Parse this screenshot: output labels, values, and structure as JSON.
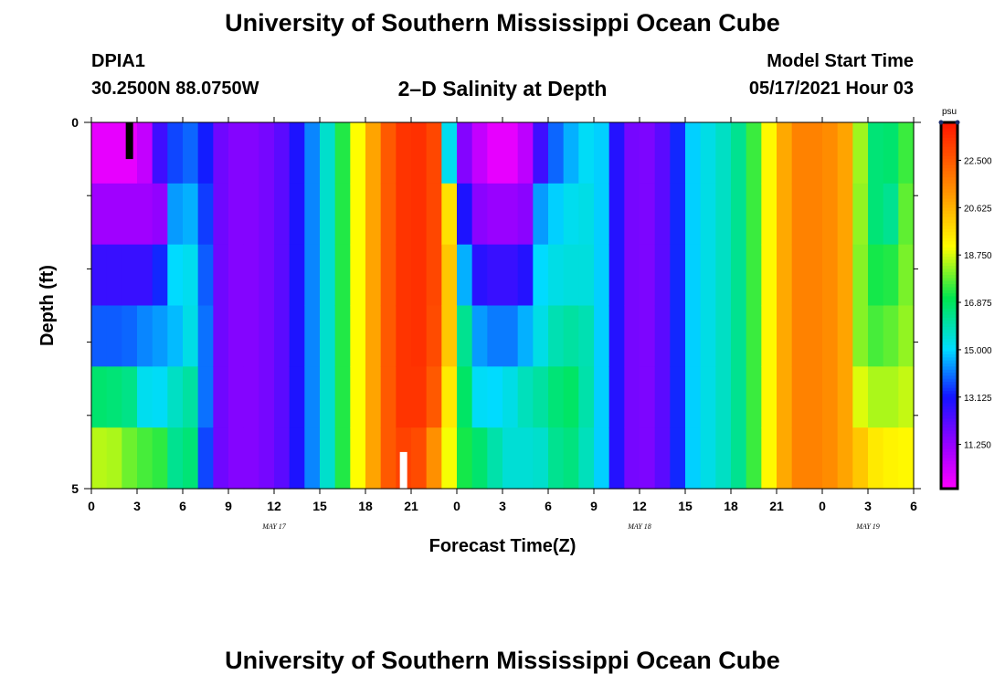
{
  "header": {
    "title": "University of Southern Mississippi Ocean Cube",
    "station_id": "DPIA1",
    "station_coords": "30.2500N  88.0750W",
    "chart_title": "2–D Salinity at Depth",
    "model_start_label": "Model Start Time",
    "model_start_value": "05/17/2021 Hour 03"
  },
  "footer": {
    "title": "University of Southern Mississippi Ocean Cube"
  },
  "chart_data": {
    "type": "heatmap",
    "title": "2–D Salinity at Depth",
    "xlabel": "Forecast Time(Z)",
    "ylabel": "Depth (ft)",
    "x_hours_range": [
      0,
      54
    ],
    "x_tick_hours": [
      0,
      3,
      6,
      9,
      12,
      15,
      18,
      21,
      24,
      27,
      30,
      33,
      36,
      39,
      42,
      45,
      48,
      51,
      54
    ],
    "x_tick_labels": [
      "0",
      "3",
      "6",
      "9",
      "12",
      "15",
      "18",
      "21",
      "0",
      "3",
      "6",
      "9",
      "12",
      "15",
      "18",
      "21",
      "0",
      "3",
      "6"
    ],
    "date_labels": [
      {
        "hour": 12,
        "text": "MAY 17"
      },
      {
        "hour": 36,
        "text": "MAY 18"
      },
      {
        "hour": 51,
        "text": "MAY 19"
      }
    ],
    "y_range": [
      0,
      5
    ],
    "y_tick_labels": [
      "0",
      "5"
    ],
    "y_minor_ticks": [
      1,
      2,
      3,
      4
    ],
    "markers": [
      {
        "hour": 2.5,
        "depth_from": 0,
        "depth_to": 0.5,
        "color": "#000000"
      },
      {
        "hour": 20.5,
        "depth_from": 4.5,
        "depth_to": 5,
        "color": "#ffffff"
      }
    ],
    "colorbar": {
      "unit": "psu",
      "min": 9.5,
      "max": 24.0,
      "tick_values": [
        11.25,
        13.125,
        15.0,
        16.875,
        18.75,
        20.625,
        22.5
      ],
      "tick_labels": [
        "11.250",
        "13.125",
        "15.000",
        "16.875",
        "18.750",
        "20.625",
        "22.500"
      ]
    },
    "columns": [
      {
        "hour": 0,
        "values": [
          9.9,
          11.1,
          12.6,
          13.8,
          16.7,
          18.5
        ]
      },
      {
        "hour": 1,
        "values": [
          9.9,
          11.1,
          12.6,
          13.8,
          16.6,
          18.4
        ]
      },
      {
        "hour": 2,
        "values": [
          9.9,
          11.1,
          12.6,
          13.9,
          16.4,
          17.9
        ]
      },
      {
        "hour": 3,
        "values": [
          10.5,
          11.1,
          12.6,
          14.2,
          15.2,
          17.6
        ]
      },
      {
        "hour": 4,
        "values": [
          12.5,
          11.3,
          13.3,
          14.4,
          15.1,
          17.4
        ]
      },
      {
        "hour": 5,
        "values": [
          13.6,
          14.4,
          15.0,
          14.7,
          15.7,
          16.3
        ]
      },
      {
        "hour": 6,
        "values": [
          13.9,
          14.6,
          15.2,
          15.3,
          16.1,
          16.6
        ]
      },
      {
        "hour": 7,
        "values": [
          13.2,
          13.5,
          13.8,
          14.0,
          14.0,
          13.6
        ]
      },
      {
        "hour": 8,
        "values": [
          11.8,
          11.8,
          11.8,
          11.8,
          11.8,
          11.8
        ]
      },
      {
        "hour": 9,
        "values": [
          11.5,
          11.5,
          11.5,
          11.5,
          11.5,
          11.5
        ]
      },
      {
        "hour": 10,
        "values": [
          11.5,
          11.5,
          11.5,
          11.5,
          11.5,
          11.5
        ]
      },
      {
        "hour": 11,
        "values": [
          11.7,
          11.7,
          11.7,
          11.7,
          11.7,
          11.7
        ]
      },
      {
        "hour": 12,
        "values": [
          12.1,
          12.1,
          12.1,
          12.1,
          12.1,
          12.1
        ]
      },
      {
        "hour": 13,
        "values": [
          13.0,
          13.0,
          13.0,
          13.0,
          13.0,
          13.0
        ]
      },
      {
        "hour": 14,
        "values": [
          14.2,
          14.2,
          14.2,
          14.2,
          14.2,
          14.2
        ]
      },
      {
        "hour": 15,
        "values": [
          15.6,
          15.6,
          15.6,
          15.6,
          15.6,
          15.6
        ]
      },
      {
        "hour": 16,
        "values": [
          17.3,
          17.3,
          17.3,
          17.3,
          17.3,
          17.3
        ]
      },
      {
        "hour": 17,
        "values": [
          19.1,
          19.1,
          19.1,
          19.1,
          19.1,
          19.1
        ]
      },
      {
        "hour": 18,
        "values": [
          20.9,
          20.9,
          20.9,
          20.9,
          20.9,
          20.9
        ]
      },
      {
        "hour": 19,
        "values": [
          22.5,
          22.5,
          22.5,
          22.5,
          22.5,
          22.5
        ]
      },
      {
        "hour": 20,
        "values": [
          23.3,
          23.3,
          23.3,
          23.3,
          23.3,
          23.0
        ]
      },
      {
        "hour": 21,
        "values": [
          23.4,
          23.4,
          23.4,
          23.4,
          23.3,
          22.8
        ]
      },
      {
        "hour": 22,
        "values": [
          22.9,
          22.9,
          22.9,
          22.8,
          22.5,
          21.3
        ]
      },
      {
        "hour": 23,
        "values": [
          15.2,
          19.7,
          20.2,
          20.2,
          19.5,
          19.0
        ]
      },
      {
        "hour": 24,
        "values": [
          11.5,
          13.0,
          14.6,
          16.3,
          16.8,
          17.2
        ]
      },
      {
        "hour": 25,
        "values": [
          10.5,
          11.4,
          12.8,
          14.4,
          15.1,
          16.7
        ]
      },
      {
        "hour": 26,
        "values": [
          9.9,
          11.2,
          12.6,
          14.1,
          15.0,
          16.0
        ]
      },
      {
        "hour": 27,
        "values": [
          9.9,
          11.2,
          12.6,
          14.1,
          15.3,
          15.5
        ]
      },
      {
        "hour": 28,
        "values": [
          10.6,
          11.4,
          12.9,
          14.6,
          15.8,
          15.5
        ]
      },
      {
        "hour": 29,
        "values": [
          12.5,
          14.4,
          15.0,
          15.3,
          16.1,
          15.6
        ]
      },
      {
        "hour": 30,
        "values": [
          13.9,
          14.9,
          15.3,
          15.9,
          16.6,
          16.3
        ]
      },
      {
        "hour": 31,
        "values": [
          14.6,
          15.2,
          15.4,
          16.1,
          16.8,
          16.5
        ]
      },
      {
        "hour": 32,
        "values": [
          15.1,
          15.3,
          15.4,
          15.9,
          16.0,
          15.8
        ]
      },
      {
        "hour": 33,
        "values": [
          14.9,
          14.9,
          14.9,
          14.9,
          14.9,
          14.9
        ]
      },
      {
        "hour": 34,
        "values": [
          12.9,
          12.9,
          12.9,
          12.9,
          12.9,
          12.9
        ]
      },
      {
        "hour": 35,
        "values": [
          11.7,
          11.7,
          11.7,
          11.7,
          11.7,
          11.7
        ]
      },
      {
        "hour": 36,
        "values": [
          11.6,
          11.6,
          11.6,
          11.6,
          11.6,
          11.6
        ]
      },
      {
        "hour": 37,
        "values": [
          12.1,
          12.1,
          12.1,
          12.1,
          12.1,
          12.1
        ]
      },
      {
        "hour": 38,
        "values": [
          13.3,
          13.3,
          13.3,
          13.3,
          13.3,
          13.3
        ]
      },
      {
        "hour": 39,
        "values": [
          14.9,
          14.9,
          14.9,
          14.9,
          14.9,
          14.9
        ]
      },
      {
        "hour": 40,
        "values": [
          15.3,
          15.3,
          15.3,
          15.3,
          15.3,
          15.3
        ]
      },
      {
        "hour": 41,
        "values": [
          15.7,
          15.7,
          15.7,
          15.7,
          15.7,
          15.7
        ]
      },
      {
        "hour": 42,
        "values": [
          16.3,
          16.3,
          16.3,
          16.3,
          16.3,
          16.3
        ]
      },
      {
        "hour": 43,
        "values": [
          17.5,
          17.5,
          17.5,
          17.5,
          17.5,
          17.5
        ]
      },
      {
        "hour": 44,
        "values": [
          19.2,
          19.2,
          19.2,
          19.2,
          19.2,
          19.2
        ]
      },
      {
        "hour": 45,
        "values": [
          20.8,
          20.8,
          20.8,
          20.8,
          20.8,
          20.8
        ]
      },
      {
        "hour": 46,
        "values": [
          21.6,
          21.6,
          21.6,
          21.6,
          21.6,
          21.6
        ]
      },
      {
        "hour": 47,
        "values": [
          21.6,
          21.6,
          21.6,
          21.6,
          21.6,
          21.6
        ]
      },
      {
        "hour": 48,
        "values": [
          21.4,
          21.4,
          21.4,
          21.4,
          21.4,
          21.4
        ]
      },
      {
        "hour": 49,
        "values": [
          20.9,
          20.9,
          20.9,
          20.9,
          20.9,
          20.9
        ]
      },
      {
        "hour": 50,
        "values": [
          18.3,
          18.2,
          18.1,
          18.1,
          18.8,
          20.2
        ]
      },
      {
        "hour": 51,
        "values": [
          16.6,
          16.6,
          17.2,
          17.6,
          18.4,
          19.5
        ]
      },
      {
        "hour": 52,
        "values": [
          16.7,
          16.3,
          17.3,
          17.8,
          18.4,
          19.3
        ]
      },
      {
        "hour": 53,
        "values": [
          17.5,
          17.8,
          18.0,
          18.2,
          18.6,
          19.2
        ]
      }
    ]
  }
}
